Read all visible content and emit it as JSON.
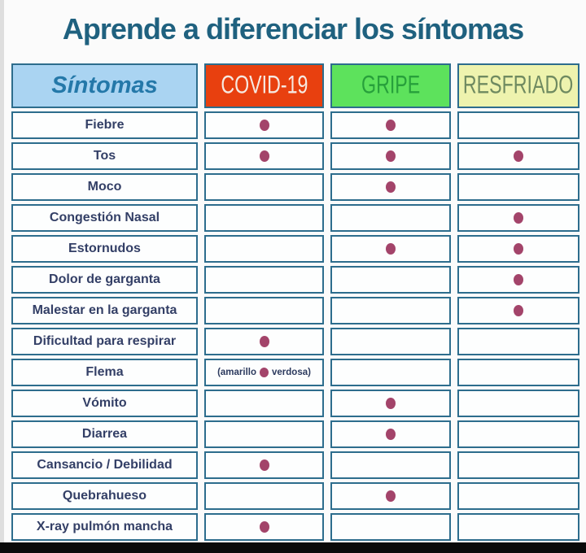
{
  "page": {
    "title": "Aprende a diferenciar los síntomas"
  },
  "colors": {
    "title_text": "#1f617f",
    "table_border": "#2d6d8d",
    "cell_background": "#fdfefe",
    "sintomas_header_bg": "#aad4f2",
    "sintomas_header_text": "#2478a9",
    "covid_header_bg": "#e8400f",
    "covid_header_text": "#f6e9e1",
    "gripe_header_bg": "#5de25c",
    "gripe_header_text": "#27a03b",
    "resfriado_header_bg": "#eef3ae",
    "resfriado_header_text": "#6f8a60",
    "dot": "#a3446a",
    "row_label_text": "#333f66",
    "bottom_bar": "#0a0a0a"
  },
  "chart_data": {
    "type": "table",
    "title": "Aprende a diferenciar los síntomas",
    "columns": [
      {
        "key": "sintomas",
        "label": "Síntomas"
      },
      {
        "key": "covid",
        "label": "COVID-19"
      },
      {
        "key": "gripe",
        "label": "GRIPE"
      },
      {
        "key": "resfriado",
        "label": "RESFRIADO"
      }
    ],
    "dot_marker": "filled-ellipse",
    "rows": [
      {
        "label": "Fiebre",
        "covid": true,
        "gripe": true,
        "resfriado": false
      },
      {
        "label": "Tos",
        "covid": true,
        "gripe": true,
        "resfriado": true
      },
      {
        "label": "Moco",
        "covid": false,
        "gripe": true,
        "resfriado": false
      },
      {
        "label": "Congestión Nasal",
        "covid": false,
        "gripe": false,
        "resfriado": true
      },
      {
        "label": "Estornudos",
        "covid": false,
        "gripe": true,
        "resfriado": true
      },
      {
        "label": "Dolor de garganta",
        "covid": false,
        "gripe": false,
        "resfriado": true
      },
      {
        "label": "Malestar en la garganta",
        "covid": false,
        "gripe": false,
        "resfriado": true
      },
      {
        "label": "Dificultad para respirar",
        "covid": true,
        "gripe": false,
        "resfriado": false
      },
      {
        "label": "Flema",
        "covid": {
          "prefix": "(amarillo",
          "suffix": "verdosa)"
        },
        "gripe": false,
        "resfriado": false
      },
      {
        "label": "Vómito",
        "covid": false,
        "gripe": true,
        "resfriado": false
      },
      {
        "label": "Diarrea",
        "covid": false,
        "gripe": true,
        "resfriado": false
      },
      {
        "label": "Cansancio / Debilidad",
        "covid": true,
        "gripe": false,
        "resfriado": false
      },
      {
        "label": "Quebrahueso",
        "covid": false,
        "gripe": true,
        "resfriado": false
      },
      {
        "label": "X-ray pulmón mancha",
        "covid": true,
        "gripe": false,
        "resfriado": false
      }
    ]
  }
}
